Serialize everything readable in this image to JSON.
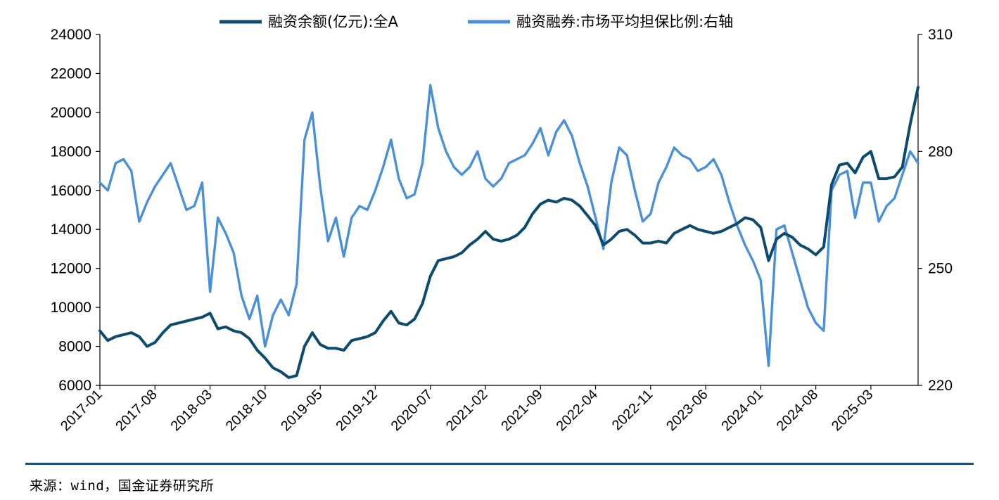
{
  "chart_data": {
    "type": "line",
    "legend_position": "top-center",
    "grid": false,
    "x_tick_labels": [
      "2017-01",
      "2017-08",
      "2018-03",
      "2018-10",
      "2019-05",
      "2019-12",
      "2020-07",
      "2021-02",
      "2021-09",
      "2022-04",
      "2022-11",
      "2023-06",
      "2024-01",
      "2024-08",
      "2025-03"
    ],
    "y_left": {
      "ticks": [
        "24000",
        "22000",
        "20000",
        "18000",
        "16000",
        "14000",
        "12000",
        "10000",
        "8000",
        "6000"
      ],
      "range": [
        6000,
        24000
      ]
    },
    "y_right": {
      "ticks": [
        "310",
        "280",
        "250",
        "220"
      ],
      "range": [
        220,
        310
      ]
    },
    "x_range": [
      "2017-01",
      "2025-09"
    ],
    "series": [
      {
        "name": "融资余额(亿元):全A",
        "axis": "left",
        "color": "#0c4a6e",
        "points": [
          [
            "2017-01",
            8800
          ],
          [
            "2017-02",
            8300
          ],
          [
            "2017-03",
            8500
          ],
          [
            "2017-04",
            8600
          ],
          [
            "2017-05",
            8700
          ],
          [
            "2017-06",
            8500
          ],
          [
            "2017-07",
            8000
          ],
          [
            "2017-08",
            8200
          ],
          [
            "2017-09",
            8700
          ],
          [
            "2017-10",
            9100
          ],
          [
            "2017-11",
            9200
          ],
          [
            "2017-12",
            9300
          ],
          [
            "2018-01",
            9400
          ],
          [
            "2018-02",
            9500
          ],
          [
            "2018-03",
            9700
          ],
          [
            "2018-04",
            8900
          ],
          [
            "2018-05",
            9000
          ],
          [
            "2018-06",
            8800
          ],
          [
            "2018-07",
            8700
          ],
          [
            "2018-08",
            8400
          ],
          [
            "2018-09",
            7800
          ],
          [
            "2018-10",
            7400
          ],
          [
            "2018-11",
            6900
          ],
          [
            "2018-12",
            6700
          ],
          [
            "2019-01",
            6400
          ],
          [
            "2019-02",
            6500
          ],
          [
            "2019-03",
            8000
          ],
          [
            "2019-04",
            8700
          ],
          [
            "2019-05",
            8100
          ],
          [
            "2019-06",
            7900
          ],
          [
            "2019-07",
            7900
          ],
          [
            "2019-08",
            7800
          ],
          [
            "2019-09",
            8300
          ],
          [
            "2019-10",
            8400
          ],
          [
            "2019-11",
            8500
          ],
          [
            "2019-12",
            8700
          ],
          [
            "2020-01",
            9300
          ],
          [
            "2020-02",
            9800
          ],
          [
            "2020-03",
            9200
          ],
          [
            "2020-04",
            9100
          ],
          [
            "2020-05",
            9400
          ],
          [
            "2020-06",
            10200
          ],
          [
            "2020-07",
            11600
          ],
          [
            "2020-08",
            12400
          ],
          [
            "2020-09",
            12500
          ],
          [
            "2020-10",
            12600
          ],
          [
            "2020-11",
            12800
          ],
          [
            "2020-12",
            13200
          ],
          [
            "2021-01",
            13500
          ],
          [
            "2021-02",
            13900
          ],
          [
            "2021-03",
            13500
          ],
          [
            "2021-04",
            13400
          ],
          [
            "2021-05",
            13500
          ],
          [
            "2021-06",
            13700
          ],
          [
            "2021-07",
            14100
          ],
          [
            "2021-08",
            14800
          ],
          [
            "2021-09",
            15300
          ],
          [
            "2021-10",
            15500
          ],
          [
            "2021-11",
            15400
          ],
          [
            "2021-12",
            15600
          ],
          [
            "2022-01",
            15500
          ],
          [
            "2022-02",
            15200
          ],
          [
            "2022-03",
            14700
          ],
          [
            "2022-04",
            14200
          ],
          [
            "2022-05",
            13200
          ],
          [
            "2022-06",
            13500
          ],
          [
            "2022-07",
            13900
          ],
          [
            "2022-08",
            14000
          ],
          [
            "2022-09",
            13700
          ],
          [
            "2022-10",
            13300
          ],
          [
            "2022-11",
            13300
          ],
          [
            "2022-12",
            13400
          ],
          [
            "2023-01",
            13300
          ],
          [
            "2023-02",
            13800
          ],
          [
            "2023-03",
            14000
          ],
          [
            "2023-04",
            14200
          ],
          [
            "2023-05",
            14000
          ],
          [
            "2023-06",
            13900
          ],
          [
            "2023-07",
            13800
          ],
          [
            "2023-08",
            13900
          ],
          [
            "2023-09",
            14100
          ],
          [
            "2023-10",
            14300
          ],
          [
            "2023-11",
            14600
          ],
          [
            "2023-12",
            14500
          ],
          [
            "2024-01",
            14100
          ],
          [
            "2024-02",
            12400
          ],
          [
            "2024-03",
            13500
          ],
          [
            "2024-04",
            13800
          ],
          [
            "2024-05",
            13600
          ],
          [
            "2024-06",
            13200
          ],
          [
            "2024-07",
            13000
          ],
          [
            "2024-08",
            12700
          ],
          [
            "2024-09",
            13100
          ],
          [
            "2024-10",
            16300
          ],
          [
            "2024-11",
            17300
          ],
          [
            "2024-12",
            17400
          ],
          [
            "2025-01",
            16900
          ],
          [
            "2025-02",
            17700
          ],
          [
            "2025-03",
            18000
          ],
          [
            "2025-04",
            16600
          ],
          [
            "2025-05",
            16600
          ],
          [
            "2025-06",
            16700
          ],
          [
            "2025-07",
            17200
          ],
          [
            "2025-08",
            19400
          ],
          [
            "2025-09",
            21300
          ]
        ]
      },
      {
        "name": "融资融券:市场平均担保比例:右轴",
        "axis": "right",
        "color": "#4a90d9",
        "points": [
          [
            "2017-01",
            272
          ],
          [
            "2017-02",
            270
          ],
          [
            "2017-03",
            277
          ],
          [
            "2017-04",
            278
          ],
          [
            "2017-05",
            275
          ],
          [
            "2017-06",
            262
          ],
          [
            "2017-07",
            267
          ],
          [
            "2017-08",
            271
          ],
          [
            "2017-09",
            274
          ],
          [
            "2017-10",
            277
          ],
          [
            "2017-11",
            271
          ],
          [
            "2017-12",
            265
          ],
          [
            "2018-01",
            266
          ],
          [
            "2018-02",
            272
          ],
          [
            "2018-03",
            244
          ],
          [
            "2018-04",
            263
          ],
          [
            "2018-05",
            259
          ],
          [
            "2018-06",
            254
          ],
          [
            "2018-07",
            243
          ],
          [
            "2018-08",
            237
          ],
          [
            "2018-09",
            243
          ],
          [
            "2018-10",
            230
          ],
          [
            "2018-11",
            238
          ],
          [
            "2018-12",
            242
          ],
          [
            "2019-01",
            238
          ],
          [
            "2019-02",
            246
          ],
          [
            "2019-03",
            283
          ],
          [
            "2019-04",
            290
          ],
          [
            "2019-05",
            271
          ],
          [
            "2019-06",
            257
          ],
          [
            "2019-07",
            263
          ],
          [
            "2019-08",
            253
          ],
          [
            "2019-09",
            263
          ],
          [
            "2019-10",
            266
          ],
          [
            "2019-11",
            265
          ],
          [
            "2019-12",
            270
          ],
          [
            "2020-01",
            276
          ],
          [
            "2020-02",
            283
          ],
          [
            "2020-03",
            273
          ],
          [
            "2020-04",
            268
          ],
          [
            "2020-05",
            269
          ],
          [
            "2020-06",
            277
          ],
          [
            "2020-07",
            297
          ],
          [
            "2020-08",
            286
          ],
          [
            "2020-09",
            280
          ],
          [
            "2020-10",
            276
          ],
          [
            "2020-11",
            274
          ],
          [
            "2020-12",
            276
          ],
          [
            "2021-01",
            280
          ],
          [
            "2021-02",
            273
          ],
          [
            "2021-03",
            271
          ],
          [
            "2021-04",
            273
          ],
          [
            "2021-05",
            277
          ],
          [
            "2021-06",
            278
          ],
          [
            "2021-07",
            279
          ],
          [
            "2021-08",
            282
          ],
          [
            "2021-09",
            286
          ],
          [
            "2021-10",
            279
          ],
          [
            "2021-11",
            285
          ],
          [
            "2021-12",
            288
          ],
          [
            "2022-01",
            284
          ],
          [
            "2022-02",
            277
          ],
          [
            "2022-03",
            271
          ],
          [
            "2022-04",
            263
          ],
          [
            "2022-05",
            255
          ],
          [
            "2022-06",
            272
          ],
          [
            "2022-07",
            281
          ],
          [
            "2022-08",
            279
          ],
          [
            "2022-09",
            270
          ],
          [
            "2022-10",
            262
          ],
          [
            "2022-11",
            264
          ],
          [
            "2022-12",
            272
          ],
          [
            "2023-01",
            276
          ],
          [
            "2023-02",
            281
          ],
          [
            "2023-03",
            279
          ],
          [
            "2023-04",
            278
          ],
          [
            "2023-05",
            275
          ],
          [
            "2023-06",
            276
          ],
          [
            "2023-07",
            278
          ],
          [
            "2023-08",
            274
          ],
          [
            "2023-09",
            267
          ],
          [
            "2023-10",
            261
          ],
          [
            "2023-11",
            256
          ],
          [
            "2023-12",
            252
          ],
          [
            "2024-01",
            247
          ],
          [
            "2024-02",
            225
          ],
          [
            "2024-03",
            260
          ],
          [
            "2024-04",
            261
          ],
          [
            "2024-05",
            254
          ],
          [
            "2024-06",
            247
          ],
          [
            "2024-07",
            240
          ],
          [
            "2024-08",
            236
          ],
          [
            "2024-09",
            234
          ],
          [
            "2024-10",
            270
          ],
          [
            "2024-11",
            274
          ],
          [
            "2024-12",
            275
          ],
          [
            "2025-01",
            263
          ],
          [
            "2025-02",
            272
          ],
          [
            "2025-03",
            272
          ],
          [
            "2025-04",
            262
          ],
          [
            "2025-05",
            266
          ],
          [
            "2025-06",
            268
          ],
          [
            "2025-07",
            274
          ],
          [
            "2025-08",
            280
          ],
          [
            "2025-09",
            277
          ]
        ]
      }
    ]
  },
  "source_note": "来源：wind，国金证券研究所"
}
